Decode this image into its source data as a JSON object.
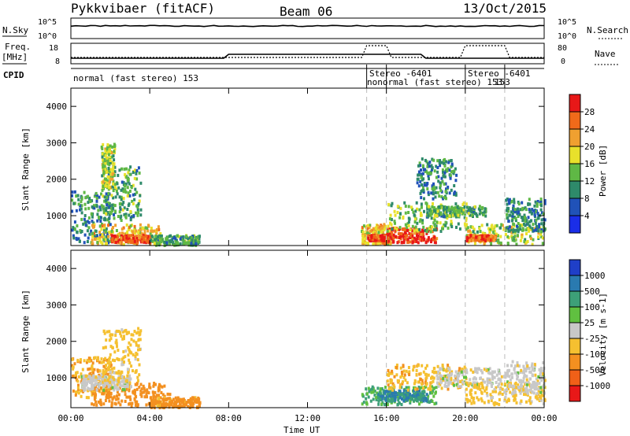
{
  "header": {
    "station": "Pykkvibaer (fitACF)",
    "beam": "Beam 06",
    "date": "13/Oct/2015"
  },
  "strips": {
    "nsky_label": "N.Sky",
    "nsky_ticks": [
      "10^5",
      "10^0"
    ],
    "nsearch_label": "N.Search",
    "nsearch_ticks": [
      "10^5",
      "10^0"
    ],
    "freq_label_top": "Freq.",
    "freq_label_unit": "[MHz]",
    "freq_ticks": [
      "18",
      "8"
    ],
    "nave_label": "Nave",
    "nave_ticks": [
      "80",
      "0"
    ],
    "cpid_label": "CPID",
    "cpid_segments": [
      {
        "text": "normal (fast stereo) 153"
      },
      {
        "text": "Stereo -6401"
      },
      {
        "text": "nonormal (fast stereo) 153"
      },
      {
        "text": "Stereo -6401"
      },
      {
        "text": "153"
      }
    ]
  },
  "axes": {
    "ylabel": "Slant Range [km]",
    "yticks": [
      "1000",
      "2000",
      "3000",
      "4000"
    ],
    "xticks": [
      "00:00",
      "04:00",
      "08:00",
      "12:00",
      "16:00",
      "20:00",
      "00:00"
    ],
    "xlabel": "Time UT"
  },
  "power_scale": {
    "label": "Power [dB]",
    "ticks": [
      "4",
      "8",
      "12",
      "16",
      "20",
      "24",
      "28"
    ],
    "colors": [
      "#1a2ee8",
      "#2052b8",
      "#2e8a6a",
      "#5fb845",
      "#e8e12b",
      "#f0a030",
      "#f06a1a",
      "#e81818"
    ]
  },
  "velocity_scale": {
    "label": "Velocity [m s-1]",
    "ticks": [
      "1000",
      "500",
      "100",
      "25",
      "-25",
      "-100",
      "-500",
      "-1000"
    ],
    "colors": [
      "#1f3fc8",
      "#2a7ab0",
      "#3da078",
      "#60c040",
      "#c8c8c8",
      "#f5c030",
      "#f39020",
      "#f06018",
      "#e81818"
    ]
  },
  "chart_data": {
    "type": "heatmap",
    "title": "Pykkvibaer (fitACF)",
    "xlabel": "Time UT",
    "ylabel": "Slant Range [km]",
    "x_range_hours": [
      0,
      24
    ],
    "y_range_km": [
      180,
      4500
    ],
    "gridlines": "dashed vertical lines at CPID changes",
    "cpid_change_times_hours": [
      15.0,
      16.0,
      20.0,
      22.0
    ],
    "power_regions": [
      {
        "t": [
          0.0,
          2.0
        ],
        "r": [
          300,
          1700
        ],
        "db": 10
      },
      {
        "t": [
          1.0,
          4.5
        ],
        "r": [
          250,
          800
        ],
        "db": 20
      },
      {
        "t": [
          2.0,
          4.0
        ],
        "r": [
          300,
          500
        ],
        "db": 28
      },
      {
        "t": [
          4.0,
          6.5
        ],
        "r": [
          220,
          500
        ],
        "db": 12
      },
      {
        "t": [
          1.5,
          3.5
        ],
        "r": [
          900,
          2400
        ],
        "db": 12
      },
      {
        "t": [
          1.5,
          2.2
        ],
        "r": [
          1800,
          3000
        ],
        "db": 16
      },
      {
        "t": [
          14.7,
          16.2
        ],
        "r": [
          250,
          800
        ],
        "db": 20
      },
      {
        "t": [
          15.0,
          16.0
        ],
        "r": [
          350,
          500
        ],
        "db": 28
      },
      {
        "t": [
          16.0,
          18.5
        ],
        "r": [
          300,
          700
        ],
        "db": 28
      },
      {
        "t": [
          16.0,
          20.0
        ],
        "r": [
          600,
          1400
        ],
        "db": 14
      },
      {
        "t": [
          18.0,
          21.0
        ],
        "r": [
          1000,
          1300
        ],
        "db": 12
      },
      {
        "t": [
          17.5,
          19.5
        ],
        "r": [
          1500,
          2600
        ],
        "db": 10
      },
      {
        "t": [
          20.0,
          24.0
        ],
        "r": [
          250,
          800
        ],
        "db": 16
      },
      {
        "t": [
          20.0,
          21.5
        ],
        "r": [
          350,
          500
        ],
        "db": 26
      },
      {
        "t": [
          22.0,
          24.0
        ],
        "r": [
          600,
          1500
        ],
        "db": 10
      }
    ],
    "velocity_regions": [
      {
        "t": [
          0.0,
          2.0
        ],
        "r": [
          500,
          1600
        ],
        "v": -100
      },
      {
        "t": [
          1.0,
          5.0
        ],
        "r": [
          250,
          900
        ],
        "v": -300
      },
      {
        "t": [
          0.5,
          3.0
        ],
        "r": [
          700,
          1100
        ],
        "v": 0
      },
      {
        "t": [
          1.5,
          3.5
        ],
        "r": [
          900,
          2400
        ],
        "v": -50
      },
      {
        "t": [
          4.0,
          6.5
        ],
        "r": [
          220,
          500
        ],
        "v": -150
      },
      {
        "t": [
          14.7,
          18.5
        ],
        "r": [
          300,
          800
        ],
        "v": 100
      },
      {
        "t": [
          15.5,
          18.0
        ],
        "r": [
          400,
          700
        ],
        "v": 500
      },
      {
        "t": [
          16.0,
          20.0
        ],
        "r": [
          700,
          1400
        ],
        "v": -80
      },
      {
        "t": [
          18.5,
          22.0
        ],
        "r": [
          800,
          1300
        ],
        "v": 0
      },
      {
        "t": [
          20.0,
          24.0
        ],
        "r": [
          300,
          900
        ],
        "v": -50
      },
      {
        "t": [
          22.0,
          24.0
        ],
        "r": [
          600,
          1500
        ],
        "v": 0
      }
    ]
  }
}
